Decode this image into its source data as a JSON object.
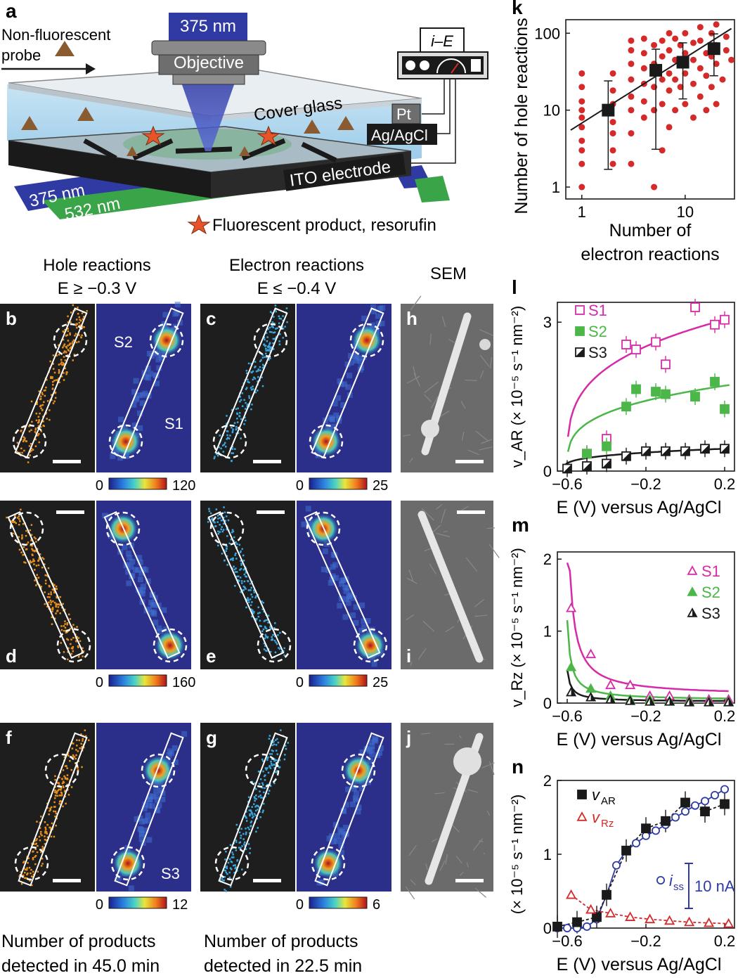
{
  "panel_letters": {
    "a": "a",
    "b": "b",
    "c": "c",
    "d": "d",
    "e": "e",
    "f": "f",
    "g": "g",
    "h": "h",
    "i": "i",
    "j": "j",
    "k": "k",
    "l": "l",
    "m": "m",
    "n": "n"
  },
  "schematic": {
    "laser_top": "375 nm",
    "objective": "Objective",
    "probe_line1": "Non-fluorescent",
    "probe_line2": "probe",
    "ie_label": "i–E",
    "cover_glass": "Cover glass",
    "pt": "Pt",
    "agagcl": "Ag/AgCl",
    "ito": "ITO electrode",
    "laser_375": "375 nm",
    "laser_532": "532 nm",
    "legend_product": "Fluorescent product, resorufin"
  },
  "column_headers": {
    "hole_line1": "Hole reactions",
    "hole_line2": "E ≥ −0.3 V",
    "electron_line1": "Electron reactions",
    "electron_line2": "E ≤ −0.4 V",
    "sem": "SEM"
  },
  "image_labels": {
    "s1": "S1",
    "s2": "S2",
    "s3": "S3"
  },
  "colorbars": [
    {
      "min": "0",
      "max": "120"
    },
    {
      "min": "0",
      "max": "25"
    },
    {
      "min": "0",
      "max": "160"
    },
    {
      "min": "0",
      "max": "25"
    },
    {
      "min": "0",
      "max": "12"
    },
    {
      "min": "0",
      "max": "6"
    }
  ],
  "footer": {
    "left_line1": "Number of products",
    "left_line2": "detected in 45.0 min",
    "right_line1": "Number of products",
    "right_line2": "detected in 22.5 min"
  },
  "colors": {
    "magenta": "#d62ba8",
    "green": "#4cb648",
    "red": "#d42a2a",
    "blue": "#2f3aa3",
    "orange": "#e8901f",
    "cyan": "#3aa7e0"
  },
  "chart_data": [
    {
      "panel": "k",
      "type": "scatter",
      "xscale": "log",
      "yscale": "log",
      "xlim": [
        0.7,
        30
      ],
      "ylim": [
        0.7,
        150
      ],
      "xlabel_line1": "Number of",
      "xlabel_line2": "electron reactions",
      "ylabel": "Number of hole reactions",
      "xticks": [
        {
          "v": 1,
          "label": "1"
        },
        {
          "v": 10,
          "label": "10"
        }
      ],
      "yticks": [
        {
          "v": 1,
          "label": "1"
        },
        {
          "v": 10,
          "label": "10"
        },
        {
          "v": 100,
          "label": "100"
        }
      ],
      "points": [
        [
          1,
          1
        ],
        [
          1,
          2
        ],
        [
          1,
          3
        ],
        [
          1,
          4
        ],
        [
          1,
          6
        ],
        [
          1,
          8
        ],
        [
          1,
          10
        ],
        [
          1,
          13
        ],
        [
          1,
          20
        ],
        [
          1,
          30
        ],
        [
          2,
          2
        ],
        [
          2,
          3
        ],
        [
          2,
          5
        ],
        [
          2,
          7
        ],
        [
          2,
          12
        ],
        [
          2,
          18
        ],
        [
          2,
          30
        ],
        [
          3,
          2
        ],
        [
          3,
          5
        ],
        [
          3,
          10
        ],
        [
          3,
          15
        ],
        [
          3,
          25
        ],
        [
          3,
          40
        ],
        [
          3,
          60
        ],
        [
          3,
          80
        ],
        [
          4,
          8
        ],
        [
          4,
          13
        ],
        [
          4,
          22
        ],
        [
          4,
          35
        ],
        [
          4,
          55
        ],
        [
          4,
          85
        ],
        [
          5,
          1
        ],
        [
          5,
          10
        ],
        [
          5,
          20
        ],
        [
          5,
          40
        ],
        [
          5,
          70
        ],
        [
          6,
          3
        ],
        [
          6,
          12
        ],
        [
          6,
          25
        ],
        [
          6,
          50
        ],
        [
          6,
          80
        ],
        [
          7,
          6
        ],
        [
          7,
          18
        ],
        [
          7,
          30
        ],
        [
          7,
          60
        ],
        [
          7,
          100
        ],
        [
          8,
          10
        ],
        [
          8,
          25
        ],
        [
          8,
          45
        ],
        [
          8,
          85
        ],
        [
          9,
          20
        ],
        [
          9,
          40
        ],
        [
          9,
          70
        ],
        [
          10,
          12
        ],
        [
          10,
          30
        ],
        [
          10,
          55
        ],
        [
          10,
          100
        ],
        [
          12,
          8
        ],
        [
          12,
          22
        ],
        [
          12,
          45
        ],
        [
          12,
          75
        ],
        [
          14,
          15
        ],
        [
          14,
          35
        ],
        [
          14,
          80
        ],
        [
          14,
          120
        ],
        [
          16,
          10
        ],
        [
          16,
          28
        ],
        [
          16,
          55
        ],
        [
          18,
          20
        ],
        [
          18,
          50
        ],
        [
          18,
          100
        ],
        [
          20,
          12
        ],
        [
          20,
          40
        ],
        [
          20,
          70
        ],
        [
          20,
          130
        ],
        [
          23,
          25
        ],
        [
          25,
          60
        ],
        [
          25,
          90
        ],
        [
          28,
          45
        ]
      ],
      "binned": [
        {
          "x": 1.8,
          "y": 10,
          "ylo": 1.7,
          "yhi": 24
        },
        {
          "x": 5.2,
          "y": 33,
          "ylo": 3.1,
          "yhi": 62
        },
        {
          "x": 9.5,
          "y": 42,
          "ylo": 14,
          "yhi": 75
        },
        {
          "x": 19,
          "y": 63,
          "ylo": 28,
          "yhi": 98
        }
      ],
      "fit_line": [
        [
          0.78,
          5.5
        ],
        [
          28,
          115
        ]
      ]
    },
    {
      "panel": "l",
      "type": "scatter",
      "xlim": [
        -0.65,
        0.25
      ],
      "ylim": [
        0,
        3.4
      ],
      "xlabel": "E (V) versus Ag/AgCl",
      "ylabel": "v_AR (× 10⁻⁵ s⁻¹ nm⁻²)",
      "xticks": [
        {
          "v": -0.6,
          "label": "−0.6"
        },
        {
          "v": -0.2,
          "label": "−0.2"
        },
        {
          "v": 0.2,
          "label": "0.2"
        }
      ],
      "yticks": [
        {
          "v": 0,
          "label": "0"
        },
        {
          "v": 3,
          "label": "3"
        }
      ],
      "series": [
        {
          "name": "S1",
          "color": "#d62ba8",
          "marker": "square-open",
          "x": [
            -0.5,
            -0.4,
            -0.3,
            -0.25,
            -0.15,
            -0.1,
            0.05,
            0.15,
            0.2
          ],
          "y": [
            0.35,
            0.65,
            2.55,
            2.45,
            2.6,
            2.15,
            3.3,
            2.95,
            3.05
          ]
        },
        {
          "name": "S2",
          "color": "#4cb648",
          "marker": "square-filled",
          "x": [
            -0.5,
            -0.4,
            -0.3,
            -0.25,
            -0.15,
            -0.1,
            0.05,
            0.15,
            0.2
          ],
          "y": [
            0.35,
            0.5,
            1.3,
            1.65,
            1.6,
            1.55,
            1.5,
            1.8,
            1.25
          ]
        },
        {
          "name": "S3",
          "color": "#1a1a1a",
          "marker": "square-half",
          "x": [
            -0.6,
            -0.5,
            -0.4,
            -0.3,
            -0.2,
            -0.1,
            0,
            0.1,
            0.2
          ],
          "y": [
            0.05,
            0.1,
            0.15,
            0.3,
            0.4,
            0.4,
            0.4,
            0.45,
            0.45
          ]
        }
      ]
    },
    {
      "panel": "m",
      "type": "scatter",
      "xlim": [
        -0.65,
        0.25
      ],
      "ylim": [
        0,
        2.1
      ],
      "xlabel": "E (V) versus Ag/AgCl",
      "ylabel": "v_Rz (× 10⁻⁵ s⁻¹ nm⁻²)",
      "xticks": [
        {
          "v": -0.6,
          "label": "−0.6"
        },
        {
          "v": -0.2,
          "label": "−0.2"
        },
        {
          "v": 0.2,
          "label": "0.2"
        }
      ],
      "yticks": [
        {
          "v": 0,
          "label": "0"
        },
        {
          "v": 1,
          "label": "1"
        },
        {
          "v": 2,
          "label": "2"
        }
      ],
      "series": [
        {
          "name": "S1",
          "color": "#d62ba8",
          "marker": "triangle-open",
          "x": [
            -0.58,
            -0.48,
            -0.38,
            -0.28,
            -0.18,
            -0.08,
            0.02,
            0.12,
            0.22
          ],
          "y": [
            1.32,
            0.68,
            0.25,
            0.25,
            0.1,
            0.1,
            0.05,
            0.05,
            0.05
          ]
        },
        {
          "name": "S2",
          "color": "#4cb648",
          "marker": "triangle-filled",
          "x": [
            -0.58,
            -0.48,
            -0.38,
            -0.28,
            -0.18,
            -0.08,
            0.02,
            0.12,
            0.22
          ],
          "y": [
            0.5,
            0.2,
            0.1,
            0.05,
            0.05,
            0.03,
            0.03,
            0.02,
            0.02
          ]
        },
        {
          "name": "S3",
          "color": "#1a1a1a",
          "marker": "triangle-half",
          "x": [
            -0.58,
            -0.48,
            -0.38,
            -0.28,
            -0.18,
            -0.08,
            0.02,
            0.12,
            0.22
          ],
          "y": [
            0.15,
            0.08,
            0.05,
            0.03,
            0.02,
            0.02,
            0.01,
            0.01,
            0.01
          ]
        }
      ]
    },
    {
      "panel": "n",
      "type": "line",
      "xlim": [
        -0.65,
        0.25
      ],
      "ylim": [
        0,
        2.0
      ],
      "xlabel": "E (V) versus Ag/AgCl",
      "ylabel": "(× 10⁻⁵ s⁻¹ nm⁻²)",
      "xticks": [
        {
          "v": -0.6,
          "label": "−0.6"
        },
        {
          "v": -0.2,
          "label": "−0.2"
        },
        {
          "v": 0.2,
          "label": "0.2"
        }
      ],
      "yticks": [
        {
          "v": 0,
          "label": "0"
        },
        {
          "v": 1,
          "label": "1"
        },
        {
          "v": 2,
          "label": "2"
        }
      ],
      "legend": {
        "var": "v",
        "ar_sub": "AR",
        "rz_sub": "Rz",
        "iss": "i",
        "iss_sub": "ss",
        "scale_label": "10 nA"
      },
      "series": [
        {
          "name": "v_AR",
          "color": "#1a1a1a",
          "marker": "square-filled",
          "x": [
            -0.65,
            -0.55,
            -0.45,
            -0.4,
            -0.3,
            -0.2,
            -0.1,
            0.0,
            0.1,
            0.2
          ],
          "y": [
            0.02,
            0.08,
            0.15,
            0.45,
            1.05,
            1.35,
            1.45,
            1.7,
            1.58,
            1.68
          ]
        },
        {
          "name": "v_Rz",
          "color": "#d42a2a",
          "marker": "triangle-open",
          "x": [
            -0.58,
            -0.48,
            -0.38,
            -0.28,
            -0.18,
            -0.08,
            0.02,
            0.12,
            0.22
          ],
          "y": [
            0.45,
            0.25,
            0.2,
            0.15,
            0.12,
            0.1,
            0.08,
            0.07,
            0.06
          ]
        },
        {
          "name": "i_ss",
          "color": "#2f3aa3",
          "marker": "circle-open",
          "x": [
            -0.65,
            -0.6,
            -0.55,
            -0.5,
            -0.45,
            -0.4,
            -0.35,
            -0.3,
            -0.25,
            -0.2,
            -0.15,
            -0.1,
            -0.05,
            0.0,
            0.05,
            0.1,
            0.15,
            0.2
          ],
          "y": [
            0.0,
            0.0,
            0.0,
            0.02,
            0.12,
            0.45,
            0.85,
            1.05,
            1.15,
            1.25,
            1.32,
            1.4,
            1.5,
            1.58,
            1.66,
            1.72,
            1.8,
            1.88
          ]
        }
      ]
    }
  ]
}
